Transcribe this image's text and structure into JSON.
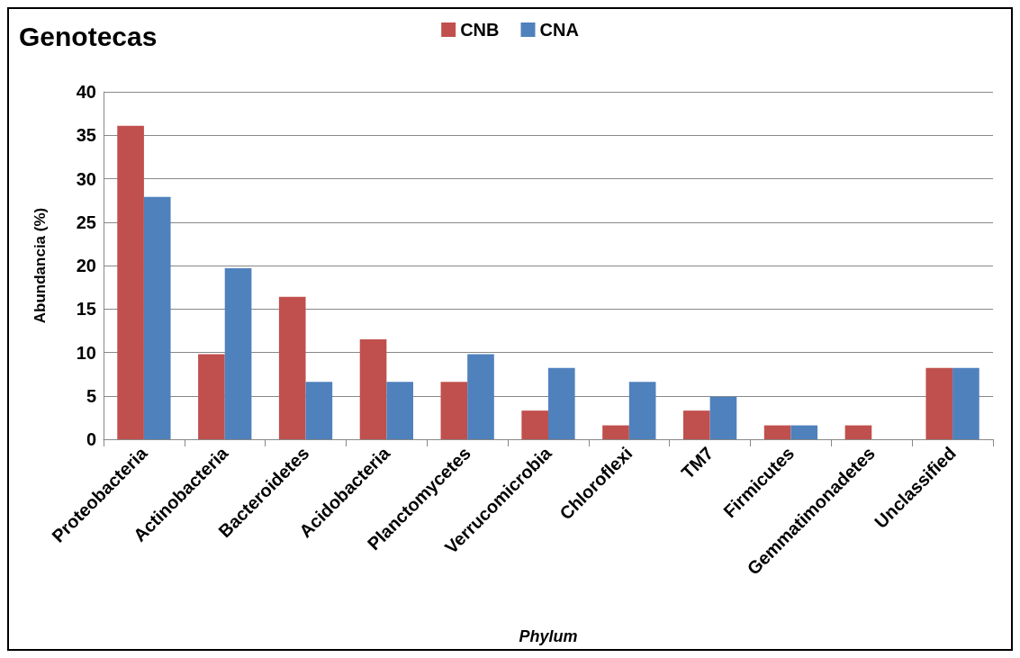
{
  "chart_data": {
    "type": "bar",
    "title": "Genotecas",
    "xlabel": "Phylum",
    "ylabel": "Abundancia (%)",
    "categories": [
      "Proteobacteria",
      "Actinobacteria",
      "Bacteroidetes",
      "Acidobacteria",
      "Planctomycetes",
      "Verrucomicrobia",
      "Chloroflexi",
      "TM7",
      "Firmicutes",
      "Gemmatimonadetes",
      "Unclassified"
    ],
    "series": [
      {
        "name": "CNB",
        "color": "#c0504d",
        "values": [
          36.1,
          9.8,
          16.4,
          11.5,
          6.6,
          3.3,
          1.6,
          3.3,
          1.6,
          1.6,
          8.2
        ]
      },
      {
        "name": "CNA",
        "color": "#4f81bd",
        "values": [
          27.9,
          19.7,
          6.6,
          6.6,
          9.8,
          8.2,
          6.6,
          4.9,
          1.6,
          0,
          8.2
        ]
      }
    ],
    "ylim": [
      0,
      40
    ],
    "yticks": [
      0,
      5,
      10,
      15,
      20,
      25,
      30,
      35,
      40
    ],
    "grid": "y",
    "legend": "top"
  }
}
